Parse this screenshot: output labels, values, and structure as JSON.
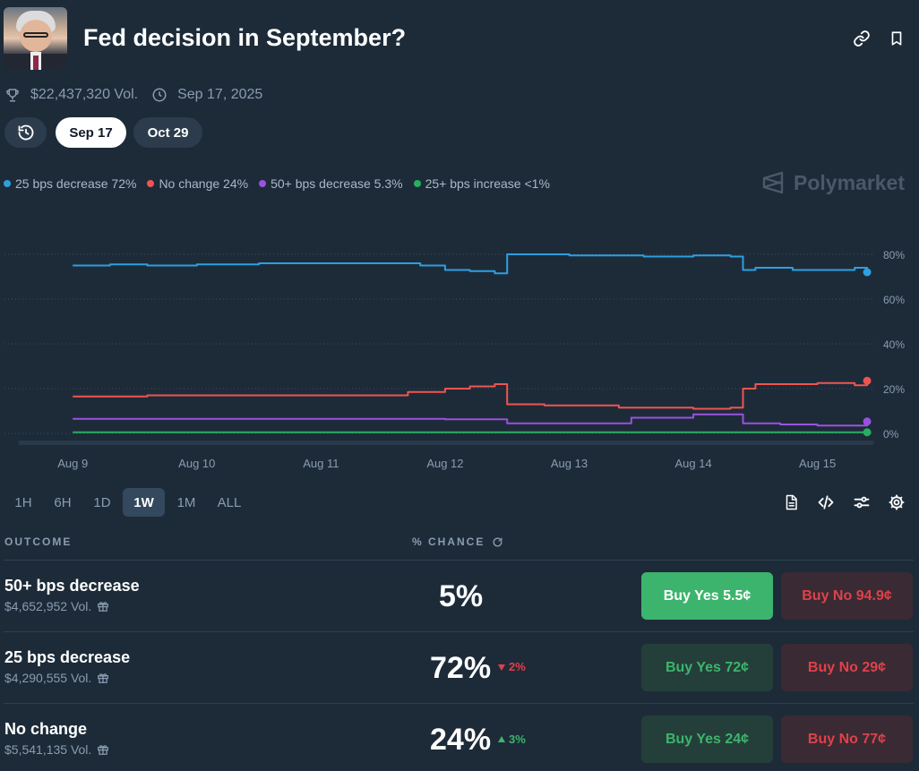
{
  "market": {
    "title": "Fed decision in September?",
    "volume": "$22,437,320 Vol.",
    "date": "Sep 17, 2025"
  },
  "date_pills": [
    "Sep 17",
    "Oct 29"
  ],
  "legend": [
    {
      "label": "25 bps decrease 72%",
      "color": "#2e9fe0"
    },
    {
      "label": "No change 24%",
      "color": "#f0544f"
    },
    {
      "label": "50+ bps decrease 5.3%",
      "color": "#9b51e0"
    },
    {
      "label": "25+ bps increase <1%",
      "color": "#27ae60"
    }
  ],
  "brand": "Polymarket",
  "timeframes": [
    "1H",
    "6H",
    "1D",
    "1W",
    "1M",
    "ALL"
  ],
  "active_timeframe": "1W",
  "table_headers": {
    "outcome": "OUTCOME",
    "chance": "% CHANCE"
  },
  "outcomes": [
    {
      "name": "50+ bps decrease",
      "volume": "$4,652,952 Vol.",
      "chance": "5%",
      "delta": "",
      "delta_dir": "",
      "buy_yes": "Buy Yes 5.5¢",
      "buy_no": "Buy No 94.9¢"
    },
    {
      "name": "25 bps decrease",
      "volume": "$4,290,555 Vol.",
      "chance": "72%",
      "delta": "2%",
      "delta_dir": "down",
      "buy_yes": "Buy Yes 72¢",
      "buy_no": "Buy No 29¢"
    },
    {
      "name": "No change",
      "volume": "$5,541,135 Vol.",
      "chance": "24%",
      "delta": "3%",
      "delta_dir": "up",
      "buy_yes": "Buy Yes 24¢",
      "buy_no": "Buy No 77¢"
    }
  ],
  "chart_data": {
    "type": "line",
    "x_labels": [
      "Aug 9",
      "Aug 10",
      "Aug 11",
      "Aug 12",
      "Aug 13",
      "Aug 14",
      "Aug 15"
    ],
    "y_ticks": [
      "80%",
      "60%",
      "40%",
      "20%",
      "0%"
    ],
    "ylim": [
      0,
      100
    ],
    "series": [
      {
        "name": "25 bps decrease",
        "color": "#2e9fe0",
        "x": [
          0,
          0.3,
          0.6,
          1.0,
          1.5,
          2.0,
          2.5,
          2.8,
          3.0,
          3.2,
          3.4,
          3.45,
          3.5,
          3.8,
          4.0,
          4.4,
          4.6,
          5.0,
          5.3,
          5.4,
          5.5,
          5.8,
          6.0,
          6.3,
          6.4
        ],
        "values": [
          75,
          75.5,
          75,
          75.5,
          76,
          76,
          76,
          75,
          73,
          72.5,
          71.5,
          71.5,
          80,
          80,
          79.5,
          79.5,
          79,
          79.5,
          79,
          73,
          74,
          73,
          73,
          74,
          72
        ]
      },
      {
        "name": "No change",
        "color": "#f0544f",
        "x": [
          0,
          0.3,
          0.6,
          1.0,
          1.5,
          2.0,
          2.4,
          2.7,
          3.0,
          3.2,
          3.4,
          3.45,
          3.5,
          3.8,
          4.0,
          4.4,
          4.6,
          5.0,
          5.3,
          5.4,
          5.5,
          5.8,
          6.0,
          6.3,
          6.4
        ],
        "values": [
          16.5,
          16.5,
          17,
          17,
          17,
          17,
          17,
          18.5,
          20,
          21,
          22,
          22,
          13,
          12.5,
          12.5,
          11.5,
          11.5,
          11,
          11.5,
          20,
          22,
          22,
          22.5,
          21.5,
          23.5
        ]
      },
      {
        "name": "50+ bps decrease",
        "color": "#9b51e0",
        "x": [
          0,
          0.5,
          1.0,
          1.5,
          2.0,
          2.5,
          3.0,
          3.5,
          4.0,
          4.5,
          5.0,
          5.3,
          5.4,
          5.7,
          6.0,
          6.3,
          6.4
        ],
        "values": [
          6.5,
          6.5,
          6.5,
          6.5,
          6.5,
          6.5,
          6.3,
          4.5,
          4.5,
          7,
          8.5,
          8.5,
          4.5,
          4,
          3.5,
          3.5,
          5.3
        ]
      },
      {
        "name": "25+ bps increase",
        "color": "#27ae60",
        "x": [
          0,
          1,
          2,
          3,
          4,
          5,
          6,
          6.4
        ],
        "values": [
          0.5,
          0.5,
          0.5,
          0.5,
          0.5,
          0.5,
          0.5,
          0.5
        ]
      }
    ]
  }
}
